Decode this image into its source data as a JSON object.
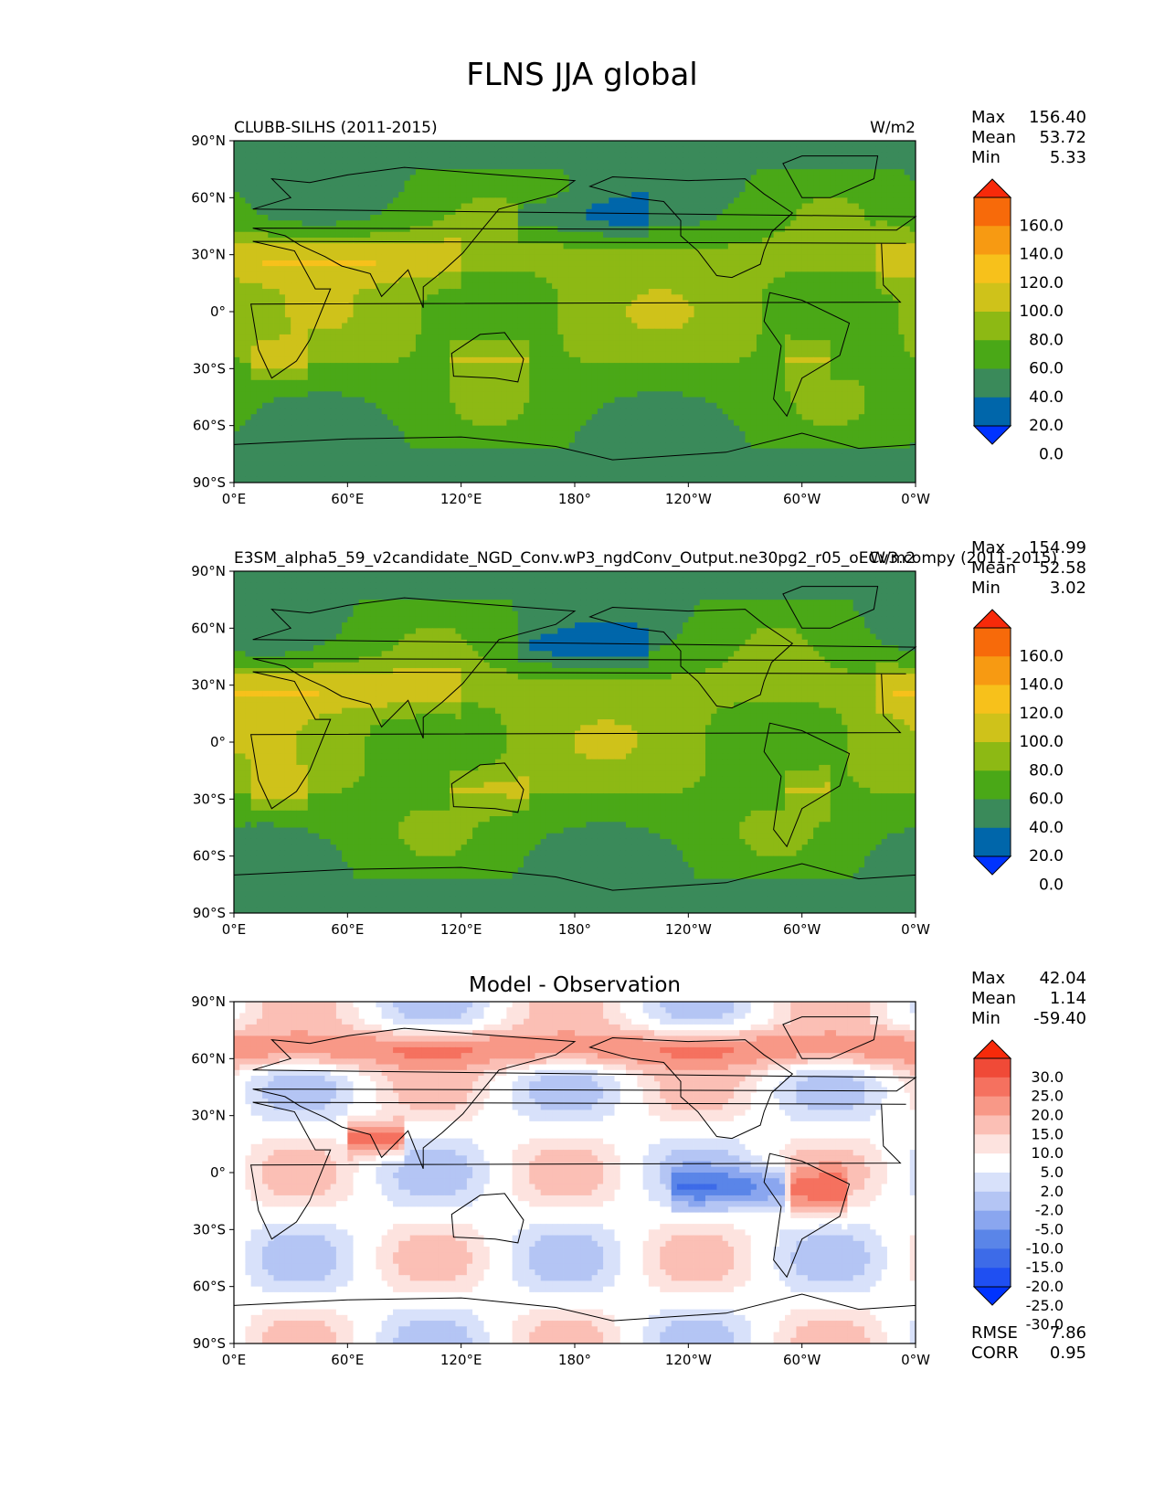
{
  "figure_title": "FLNS JJA global",
  "colors": {
    "abs_levels": [
      "#0033ff",
      "#0066aa",
      "#3a8a5a",
      "#4aa817",
      "#8db914",
      "#cfc21a",
      "#f7c11b",
      "#f79a12",
      "#f76a0a",
      "#f72a0a"
    ],
    "diff_levels": [
      "#0033ff",
      "#1f4ff2",
      "#3d6be8",
      "#5a85e8",
      "#8aa6ef",
      "#b4c5f4",
      "#d8e1fa",
      "#ffffff",
      "#fde3df",
      "#fbbfb5",
      "#f89887",
      "#f5715f",
      "#f04a37",
      "#f72a0a"
    ]
  },
  "panels": [
    {
      "left_title": "CLUBB-SILHS (2011-2015)",
      "right_title": "W/m2",
      "center_title": "",
      "kind": "abs",
      "stats": [
        {
          "label": "Max",
          "value": "156.40"
        },
        {
          "label": "Mean",
          "value": "53.72"
        },
        {
          "label": "Min",
          "value": "5.33"
        }
      ],
      "colorbar_ticks": [
        "160.0",
        "140.0",
        "120.0",
        "100.0",
        "80.0",
        "60.0",
        "40.0",
        "20.0",
        "0.0"
      ],
      "metrics": []
    },
    {
      "left_title": "E3SM_alpha5_59_v2candidate_NGD_Conv.wP3_ngdConv_Output.ne30pg2_r05_oECv3.compy (2011-2015)",
      "right_title": "W/m2",
      "center_title": "",
      "kind": "abs",
      "stats": [
        {
          "label": "Max",
          "value": "154.99"
        },
        {
          "label": "Mean",
          "value": "52.58"
        },
        {
          "label": "Min",
          "value": "3.02"
        }
      ],
      "colorbar_ticks": [
        "160.0",
        "140.0",
        "120.0",
        "100.0",
        "80.0",
        "60.0",
        "40.0",
        "20.0",
        "0.0"
      ],
      "metrics": []
    },
    {
      "left_title": "",
      "right_title": "",
      "center_title": "Model - Observation",
      "kind": "diff",
      "stats": [
        {
          "label": "Max",
          "value": "42.04"
        },
        {
          "label": "Mean",
          "value": "1.14"
        },
        {
          "label": "Min",
          "value": "-59.40"
        }
      ],
      "colorbar_ticks": [
        "30.0",
        "25.0",
        "20.0",
        "15.0",
        "10.0",
        "5.0",
        "2.0",
        "-2.0",
        "-5.0",
        "-10.0",
        "-15.0",
        "-20.0",
        "-25.0",
        "-30.0"
      ],
      "metrics": [
        {
          "label": "RMSE",
          "value": "7.86"
        },
        {
          "label": "CORR",
          "value": "0.95"
        }
      ]
    }
  ],
  "chart_data": [
    {
      "type": "heatmap",
      "title": "CLUBB-SILHS (2011-2015)",
      "units": "W/m2",
      "x_ticks": [
        "0°E",
        "60°E",
        "120°E",
        "180°",
        "120°W",
        "60°W",
        "0°W"
      ],
      "y_ticks": [
        "90°N",
        "60°N",
        "30°N",
        "0°",
        "30°S",
        "60°S",
        "90°S"
      ],
      "xlim": [
        0,
        360
      ],
      "ylim": [
        -90,
        90
      ],
      "levels": [
        0,
        20,
        40,
        60,
        80,
        100,
        120,
        140,
        160
      ],
      "max": 156.4,
      "mean": 53.72,
      "min": 5.33
    },
    {
      "type": "heatmap",
      "title": "E3SM_alpha5_59_v2candidate_NGD_Conv.wP3_ngdConv_Output.ne30pg2_r05_oECv3.compy (2011-2015)",
      "units": "W/m2",
      "x_ticks": [
        "0°E",
        "60°E",
        "120°E",
        "180°",
        "120°W",
        "60°W",
        "0°W"
      ],
      "y_ticks": [
        "90°N",
        "60°N",
        "30°N",
        "0°",
        "30°S",
        "60°S",
        "90°S"
      ],
      "xlim": [
        0,
        360
      ],
      "ylim": [
        -90,
        90
      ],
      "levels": [
        0,
        20,
        40,
        60,
        80,
        100,
        120,
        140,
        160
      ],
      "max": 154.99,
      "mean": 52.58,
      "min": 3.02
    },
    {
      "type": "heatmap",
      "title": "Model - Observation",
      "x_ticks": [
        "0°E",
        "60°E",
        "120°E",
        "180°",
        "120°W",
        "60°W",
        "0°W"
      ],
      "y_ticks": [
        "90°N",
        "60°N",
        "30°N",
        "0°",
        "30°S",
        "60°S",
        "90°S"
      ],
      "xlim": [
        0,
        360
      ],
      "ylim": [
        -90,
        90
      ],
      "levels": [
        -30,
        -25,
        -20,
        -15,
        -10,
        -5,
        -2,
        2,
        5,
        10,
        15,
        20,
        25,
        30
      ],
      "max": 42.04,
      "mean": 1.14,
      "min": -59.4,
      "rmse": 7.86,
      "corr": 0.95
    }
  ]
}
